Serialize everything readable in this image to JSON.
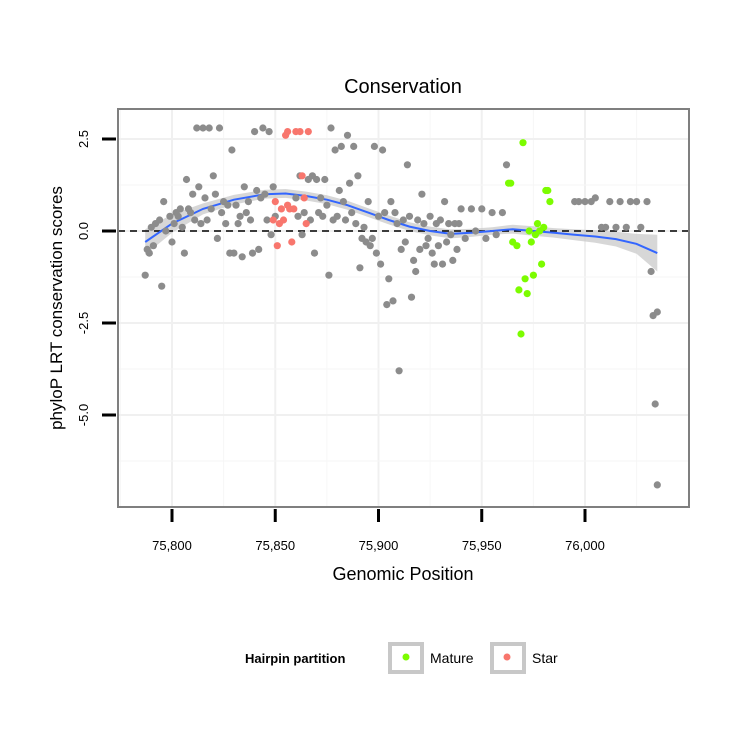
{
  "chart_data": {
    "type": "scatter",
    "title": "Conservation",
    "xlabel": "Genomic Position",
    "ylabel": "phyloP LRT conservation scores",
    "xlim": [
      75775,
      76050
    ],
    "ylim": [
      -7.5,
      3.3
    ],
    "x_ticks": [
      75800,
      75850,
      75900,
      75950,
      76000
    ],
    "x_tick_labels": [
      "75,800",
      "75,850",
      "75,900",
      "75,950",
      "76,000"
    ],
    "y_ticks": [
      2.5,
      0.0,
      -2.5,
      -5.0
    ],
    "y_tick_labels": [
      "2.5",
      "0.0",
      "-2.5",
      "-5.0"
    ],
    "grid": true,
    "reference_line": {
      "y": 0,
      "style": "dashed"
    },
    "legend": {
      "title": "Hairpin partition",
      "position": "bottom",
      "entries": [
        {
          "label": "Mature",
          "color": "#7CFC00"
        },
        {
          "label": "Star",
          "color": "#F8766D"
        }
      ]
    },
    "colors": {
      "other": "#8c8c8c",
      "Mature": "#7CFC00",
      "Star": "#F8766D",
      "smooth": "#3366FF",
      "ribbon": "#c9c9c9"
    },
    "series": [
      {
        "label": "other",
        "points": [
          [
            75787,
            -1.2
          ],
          [
            75788,
            -0.5
          ],
          [
            75789,
            -0.6
          ],
          [
            75790,
            0.1
          ],
          [
            75791,
            -0.4
          ],
          [
            75792,
            0.2
          ],
          [
            75794,
            0.3
          ],
          [
            75795,
            -1.5
          ],
          [
            75796,
            0.8
          ],
          [
            75797,
            0.0
          ],
          [
            75799,
            0.4
          ],
          [
            75800,
            -0.3
          ],
          [
            75801,
            0.2
          ],
          [
            75802,
            0.5
          ],
          [
            75803,
            0.4
          ],
          [
            75804,
            0.6
          ],
          [
            75805,
            0.1
          ],
          [
            75806,
            -0.6
          ],
          [
            75807,
            1.4
          ],
          [
            75808,
            0.6
          ],
          [
            75809,
            0.5
          ],
          [
            75810,
            1.0
          ],
          [
            75811,
            0.3
          ],
          [
            75812,
            2.8
          ],
          [
            75813,
            1.2
          ],
          [
            75814,
            0.2
          ],
          [
            75815,
            2.8
          ],
          [
            75816,
            0.9
          ],
          [
            75817,
            0.3
          ],
          [
            75818,
            2.8
          ],
          [
            75819,
            0.6
          ],
          [
            75820,
            1.5
          ],
          [
            75821,
            1.0
          ],
          [
            75822,
            -0.2
          ],
          [
            75823,
            2.8
          ],
          [
            75824,
            0.5
          ],
          [
            75825,
            0.8
          ],
          [
            75826,
            0.2
          ],
          [
            75827,
            0.7
          ],
          [
            75828,
            -0.6
          ],
          [
            75829,
            2.2
          ],
          [
            75830,
            -0.6
          ],
          [
            75831,
            0.7
          ],
          [
            75832,
            0.2
          ],
          [
            75833,
            0.4
          ],
          [
            75834,
            -0.7
          ],
          [
            75835,
            1.2
          ],
          [
            75836,
            0.5
          ],
          [
            75837,
            0.8
          ],
          [
            75838,
            0.3
          ],
          [
            75839,
            -0.6
          ],
          [
            75840,
            2.7
          ],
          [
            75841,
            1.1
          ],
          [
            75842,
            -0.5
          ],
          [
            75843,
            0.9
          ],
          [
            75844,
            2.8
          ],
          [
            75845,
            1.0
          ],
          [
            75846,
            0.3
          ],
          [
            75847,
            2.7
          ],
          [
            75848,
            -0.1
          ],
          [
            75849,
            1.2
          ],
          [
            75850,
            0.4
          ],
          [
            75860,
            0.9
          ],
          [
            75861,
            0.4
          ],
          [
            75862,
            1.5
          ],
          [
            75863,
            -0.1
          ],
          [
            75864,
            0.5
          ],
          [
            75866,
            1.4
          ],
          [
            75867,
            0.3
          ],
          [
            75868,
            1.5
          ],
          [
            75869,
            -0.6
          ],
          [
            75870,
            1.4
          ],
          [
            75871,
            0.5
          ],
          [
            75872,
            0.9
          ],
          [
            75873,
            0.4
          ],
          [
            75874,
            1.4
          ],
          [
            75875,
            0.7
          ],
          [
            75876,
            -1.2
          ],
          [
            75877,
            2.8
          ],
          [
            75878,
            0.3
          ],
          [
            75879,
            2.2
          ],
          [
            75880,
            0.4
          ],
          [
            75881,
            1.1
          ],
          [
            75882,
            2.3
          ],
          [
            75883,
            0.8
          ],
          [
            75884,
            0.3
          ],
          [
            75885,
            2.6
          ],
          [
            75886,
            1.3
          ],
          [
            75887,
            0.5
          ],
          [
            75888,
            2.3
          ],
          [
            75889,
            0.2
          ],
          [
            75890,
            1.5
          ],
          [
            75891,
            -1.0
          ],
          [
            75892,
            -0.2
          ],
          [
            75893,
            0.1
          ],
          [
            75894,
            -0.3
          ],
          [
            75895,
            0.8
          ],
          [
            75896,
            -0.4
          ],
          [
            75897,
            -0.2
          ],
          [
            75898,
            2.3
          ],
          [
            75899,
            -0.6
          ],
          [
            75900,
            0.4
          ],
          [
            75901,
            -0.9
          ],
          [
            75902,
            2.2
          ],
          [
            75903,
            0.5
          ],
          [
            75904,
            -2.0
          ],
          [
            75905,
            -1.3
          ],
          [
            75906,
            0.8
          ],
          [
            75907,
            -1.9
          ],
          [
            75908,
            0.5
          ],
          [
            75909,
            0.2
          ],
          [
            75910,
            -3.8
          ],
          [
            75911,
            -0.5
          ],
          [
            75912,
            0.3
          ],
          [
            75913,
            -0.3
          ],
          [
            75914,
            1.8
          ],
          [
            75915,
            0.4
          ],
          [
            75916,
            -1.8
          ],
          [
            75917,
            -0.8
          ],
          [
            75918,
            -1.1
          ],
          [
            75919,
            0.3
          ],
          [
            75920,
            -0.5
          ],
          [
            75921,
            1.0
          ],
          [
            75922,
            0.2
          ],
          [
            75923,
            -0.4
          ],
          [
            75924,
            -0.2
          ],
          [
            75925,
            0.4
          ],
          [
            75926,
            -0.6
          ],
          [
            75927,
            -0.9
          ],
          [
            75928,
            0.2
          ],
          [
            75929,
            -0.4
          ],
          [
            75930,
            0.3
          ],
          [
            75931,
            -0.9
          ],
          [
            75932,
            0.8
          ],
          [
            75933,
            -0.3
          ],
          [
            75934,
            0.2
          ],
          [
            75935,
            -0.1
          ],
          [
            75936,
            -0.8
          ],
          [
            75937,
            0.2
          ],
          [
            75938,
            -0.5
          ],
          [
            75939,
            0.2
          ],
          [
            75940,
            0.6
          ],
          [
            75942,
            -0.2
          ],
          [
            75945,
            0.6
          ],
          [
            75947,
            0.0
          ],
          [
            75950,
            0.6
          ],
          [
            75952,
            -0.2
          ],
          [
            75955,
            0.5
          ],
          [
            75957,
            -0.1
          ],
          [
            75960,
            0.5
          ],
          [
            75962,
            1.8
          ],
          [
            75995,
            0.8
          ],
          [
            75997,
            0.8
          ],
          [
            76000,
            0.8
          ],
          [
            76003,
            0.8
          ],
          [
            76005,
            0.9
          ],
          [
            76008,
            0.1
          ],
          [
            76010,
            0.1
          ],
          [
            76012,
            0.8
          ],
          [
            76015,
            0.1
          ],
          [
            76017,
            0.8
          ],
          [
            76020,
            0.1
          ],
          [
            76022,
            0.8
          ],
          [
            76025,
            0.8
          ],
          [
            76027,
            0.1
          ],
          [
            76030,
            0.8
          ],
          [
            76032,
            -1.1
          ],
          [
            76033,
            -2.3
          ],
          [
            76034,
            -4.7
          ],
          [
            76035,
            -2.2
          ],
          [
            76035,
            -6.9
          ]
        ]
      },
      {
        "label": "Mature",
        "points": [
          [
            75963,
            1.3
          ],
          [
            75964,
            1.3
          ],
          [
            75965,
            -0.3
          ],
          [
            75967,
            -0.4
          ],
          [
            75968,
            -1.6
          ],
          [
            75969,
            -2.8
          ],
          [
            75970,
            2.4
          ],
          [
            75971,
            -1.3
          ],
          [
            75972,
            -1.7
          ],
          [
            75973,
            0.0
          ],
          [
            75974,
            -0.3
          ],
          [
            75975,
            -1.2
          ],
          [
            75976,
            -0.1
          ],
          [
            75977,
            0.2
          ],
          [
            75978,
            0.0
          ],
          [
            75979,
            -0.9
          ],
          [
            75980,
            0.1
          ],
          [
            75981,
            1.1
          ],
          [
            75982,
            1.1
          ],
          [
            75983,
            0.8
          ]
        ]
      },
      {
        "label": "Star",
        "points": [
          [
            75849,
            0.3
          ],
          [
            75850,
            0.8
          ],
          [
            75851,
            -0.4
          ],
          [
            75852,
            0.2
          ],
          [
            75853,
            0.6
          ],
          [
            75854,
            0.3
          ],
          [
            75855,
            2.6
          ],
          [
            75856,
            0.7
          ],
          [
            75857,
            0.6
          ],
          [
            75858,
            -0.3
          ],
          [
            75859,
            0.6
          ],
          [
            75860,
            2.7
          ],
          [
            75862,
            2.7
          ],
          [
            75863,
            1.5
          ],
          [
            75864,
            0.9
          ],
          [
            75865,
            0.2
          ],
          [
            75866,
            2.7
          ],
          [
            75856,
            2.7
          ]
        ]
      }
    ],
    "smooth_line": {
      "x": [
        75787,
        75800,
        75815,
        75830,
        75845,
        75855,
        75865,
        75875,
        75885,
        75895,
        75905,
        75915,
        75925,
        75935,
        75945,
        75955,
        75965,
        75975,
        75985,
        75995,
        76005,
        76015,
        76025,
        76035
      ],
      "y": [
        -0.3,
        0.2,
        0.6,
        0.85,
        1.0,
        1.02,
        0.95,
        0.85,
        0.7,
        0.5,
        0.3,
        0.12,
        0.0,
        -0.08,
        -0.05,
        0.0,
        0.05,
        0.0,
        -0.05,
        -0.1,
        -0.15,
        -0.22,
        -0.35,
        -0.6
      ]
    },
    "ribbon": {
      "lower": [
        -0.65,
        -0.05,
        0.45,
        0.72,
        0.88,
        0.9,
        0.83,
        0.73,
        0.58,
        0.38,
        0.18,
        0.0,
        -0.12,
        -0.2,
        -0.16,
        -0.1,
        -0.07,
        -0.13,
        -0.18,
        -0.25,
        -0.32,
        -0.42,
        -0.62,
        -1.1
      ],
      "upper": [
        0.05,
        0.45,
        0.75,
        0.98,
        1.12,
        1.14,
        1.07,
        0.97,
        0.82,
        0.62,
        0.42,
        0.24,
        0.12,
        0.04,
        0.06,
        0.1,
        0.17,
        0.13,
        0.08,
        0.05,
        0.02,
        -0.02,
        -0.08,
        -0.1
      ]
    }
  }
}
